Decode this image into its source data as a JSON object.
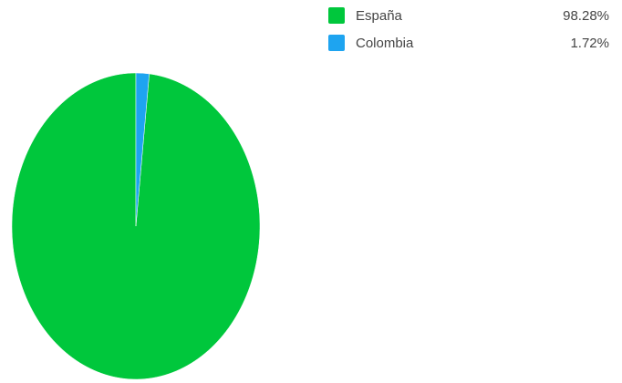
{
  "chart_data": {
    "type": "pie",
    "categories": [
      "España",
      "Colombia"
    ],
    "values": [
      98.28,
      1.72
    ],
    "value_labels": [
      "98.28%",
      "1.72%"
    ],
    "colors": [
      "#00c73c",
      "#1ea4f0"
    ],
    "title": "",
    "legend_position": "top-right"
  },
  "legend": {
    "items": [
      {
        "label": "España",
        "value": "98.28%",
        "color": "#00c73c"
      },
      {
        "label": "Colombia",
        "value": "1.72%",
        "color": "#1ea4f0"
      }
    ]
  }
}
